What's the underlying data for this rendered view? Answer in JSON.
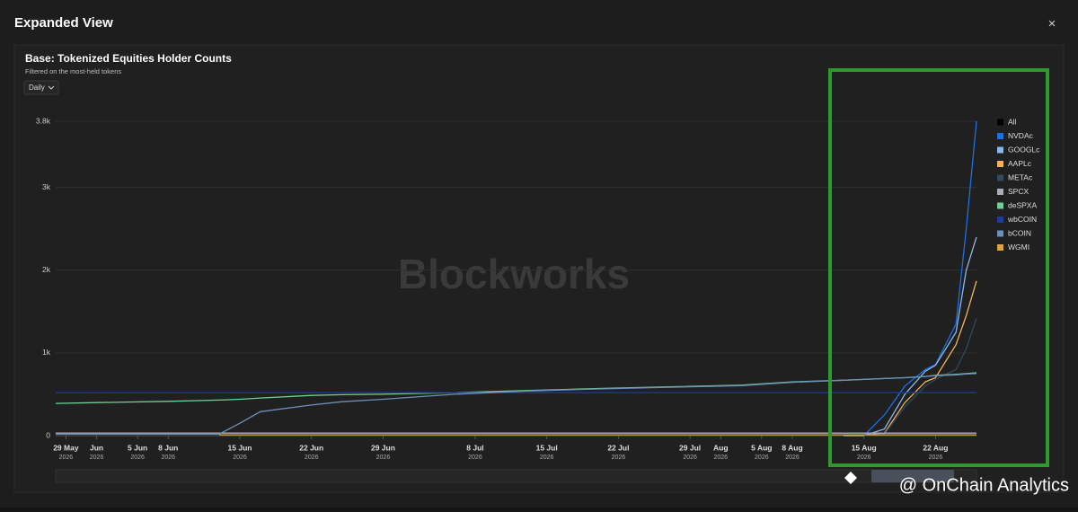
{
  "modal_title": "Expanded View",
  "close_icon": "×",
  "interval_selector": "Daily",
  "watermark": "Blockworks",
  "overlay_credit": "@ OnChain Analytics",
  "chart_data": {
    "type": "line",
    "title": "Base: Tokenized Equities Holder Counts",
    "subtitle": "Filtered on the most-held tokens",
    "x": [
      "2026-05-28",
      "2026-06-01",
      "2026-06-08",
      "2026-06-13",
      "2026-06-15",
      "2026-06-17",
      "2026-06-22",
      "2026-06-25",
      "2026-06-29",
      "2026-07-06",
      "2026-07-13",
      "2026-07-20",
      "2026-07-27",
      "2026-08-03",
      "2026-08-08",
      "2026-08-13",
      "2026-08-15",
      "2026-08-17",
      "2026-08-19",
      "2026-08-21",
      "2026-08-22",
      "2026-08-24",
      "2026-08-25",
      "2026-08-26"
    ],
    "xlim": [
      "2026-05-28",
      "2026-08-26"
    ],
    "xticks": [
      {
        "value": "2026-05-29",
        "label": "29 May",
        "year": "2026"
      },
      {
        "value": "2026-06-01",
        "label": "Jun",
        "year": "2026"
      },
      {
        "value": "2026-06-05",
        "label": "5 Jun",
        "year": "2026"
      },
      {
        "value": "2026-06-08",
        "label": "8 Jun",
        "year": "2026"
      },
      {
        "value": "2026-06-15",
        "label": "15 Jun",
        "year": "2026"
      },
      {
        "value": "2026-06-22",
        "label": "22 Jun",
        "year": "2026"
      },
      {
        "value": "2026-06-29",
        "label": "29 Jun",
        "year": "2026"
      },
      {
        "value": "2026-07-08",
        "label": "8 Jul",
        "year": "2026"
      },
      {
        "value": "2026-07-15",
        "label": "15 Jul",
        "year": "2026"
      },
      {
        "value": "2026-07-22",
        "label": "22 Jul",
        "year": "2026"
      },
      {
        "value": "2026-07-29",
        "label": "29 Jul",
        "year": "2026"
      },
      {
        "value": "2026-08-01",
        "label": "Aug",
        "year": "2026"
      },
      {
        "value": "2026-08-05",
        "label": "5 Aug",
        "year": "2026"
      },
      {
        "value": "2026-08-08",
        "label": "8 Aug",
        "year": "2026"
      },
      {
        "value": "2026-08-15",
        "label": "15 Aug",
        "year": "2026"
      },
      {
        "value": "2026-08-22",
        "label": "22 Aug",
        "year": "2026"
      }
    ],
    "ylim": [
      0,
      3800
    ],
    "yticks": [
      0,
      {
        "value": 1000,
        "label": "1k"
      },
      {
        "value": 2000,
        "label": "2k"
      },
      {
        "value": 3000,
        "label": "3k"
      },
      {
        "value": 3800,
        "label": "3.8k"
      }
    ],
    "grid": true,
    "legend": "right",
    "series": [
      {
        "name": "All",
        "color": "#000000",
        "values": [
          null,
          null,
          null,
          null,
          null,
          null,
          null,
          null,
          null,
          null,
          null,
          null,
          null,
          null,
          null,
          null,
          null,
          null,
          null,
          null,
          null,
          null,
          null,
          null
        ]
      },
      {
        "name": "NVDAc",
        "color": "#1f6fe5",
        "values": [
          null,
          null,
          null,
          null,
          null,
          null,
          null,
          null,
          null,
          null,
          null,
          null,
          null,
          null,
          null,
          0,
          0,
          250,
          600,
          800,
          860,
          1350,
          2500,
          3800
        ]
      },
      {
        "name": "GOOGLc",
        "color": "#8cb8e8",
        "values": [
          null,
          null,
          null,
          null,
          null,
          null,
          null,
          null,
          null,
          null,
          null,
          null,
          null,
          null,
          null,
          0,
          0,
          80,
          500,
          780,
          850,
          1250,
          2000,
          2400
        ]
      },
      {
        "name": "AAPLc",
        "color": "#f2b35a",
        "values": [
          null,
          null,
          null,
          null,
          null,
          null,
          null,
          null,
          null,
          null,
          null,
          null,
          null,
          null,
          null,
          null,
          0,
          30,
          400,
          650,
          700,
          1100,
          1450,
          1870
        ]
      },
      {
        "name": "METAc",
        "color": "#34495e",
        "values": [
          null,
          null,
          null,
          null,
          null,
          null,
          null,
          null,
          null,
          null,
          null,
          null,
          null,
          null,
          null,
          null,
          0,
          20,
          350,
          600,
          680,
          800,
          1050,
          1420
        ]
      },
      {
        "name": "SPCX",
        "color": "#a9adb5",
        "values": [
          30,
          30,
          30,
          30,
          30,
          30,
          30,
          30,
          30,
          30,
          30,
          30,
          30,
          30,
          30,
          30,
          30,
          30,
          30,
          30,
          30,
          30,
          30,
          30
        ]
      },
      {
        "name": "deSPXA",
        "color": "#6fcf97",
        "values": [
          390,
          400,
          415,
          430,
          440,
          455,
          486,
          495,
          500,
          520,
          545,
          570,
          590,
          610,
          650,
          670,
          680,
          690,
          700,
          715,
          730,
          740,
          750,
          760
        ]
      },
      {
        "name": "wbCOIN",
        "color": "#1e3a9e",
        "values": [
          520,
          520,
          520,
          520,
          520,
          520,
          520,
          520,
          520,
          520,
          520,
          520,
          520,
          520,
          520,
          520,
          520,
          520,
          520,
          520,
          520,
          520,
          520,
          520
        ]
      },
      {
        "name": "bCOIN",
        "color": "#6f8fb8",
        "values": [
          20,
          20,
          20,
          20,
          150,
          290,
          370,
          410,
          440,
          500,
          540,
          565,
          585,
          605,
          645,
          670,
          680,
          690,
          700,
          715,
          725,
          735,
          745,
          750
        ]
      },
      {
        "name": "WGMI",
        "color": "#d9a441",
        "values": [
          null,
          null,
          null,
          10,
          10,
          10,
          10,
          10,
          10,
          10,
          10,
          10,
          10,
          10,
          10,
          10,
          10,
          10,
          10,
          10,
          10,
          10,
          10,
          10
        ]
      }
    ]
  }
}
